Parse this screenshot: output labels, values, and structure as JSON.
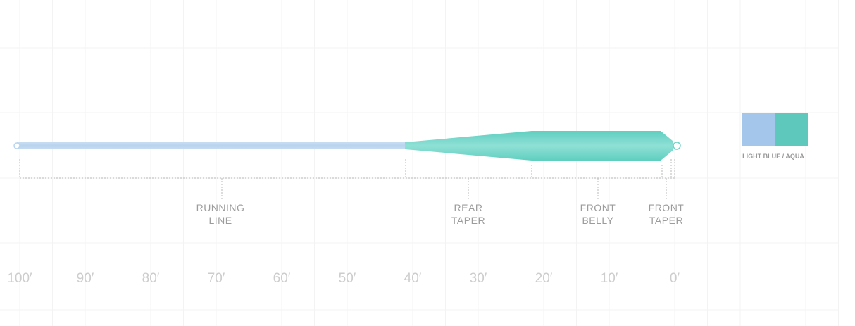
{
  "segments": [
    {
      "lines": [
        "RUNNING",
        "LINE"
      ]
    },
    {
      "lines": [
        "REAR",
        "TAPER"
      ]
    },
    {
      "lines": [
        "FRONT",
        "BELLY"
      ]
    },
    {
      "lines": [
        "FRONT",
        "TAPER"
      ]
    }
  ],
  "axis_labels": [
    "100′",
    "90′",
    "80′",
    "70′",
    "60′",
    "50′",
    "40′",
    "30′",
    "20′",
    "10′",
    "0′"
  ],
  "color_label": "LIGHT BLUE / AQUA"
}
